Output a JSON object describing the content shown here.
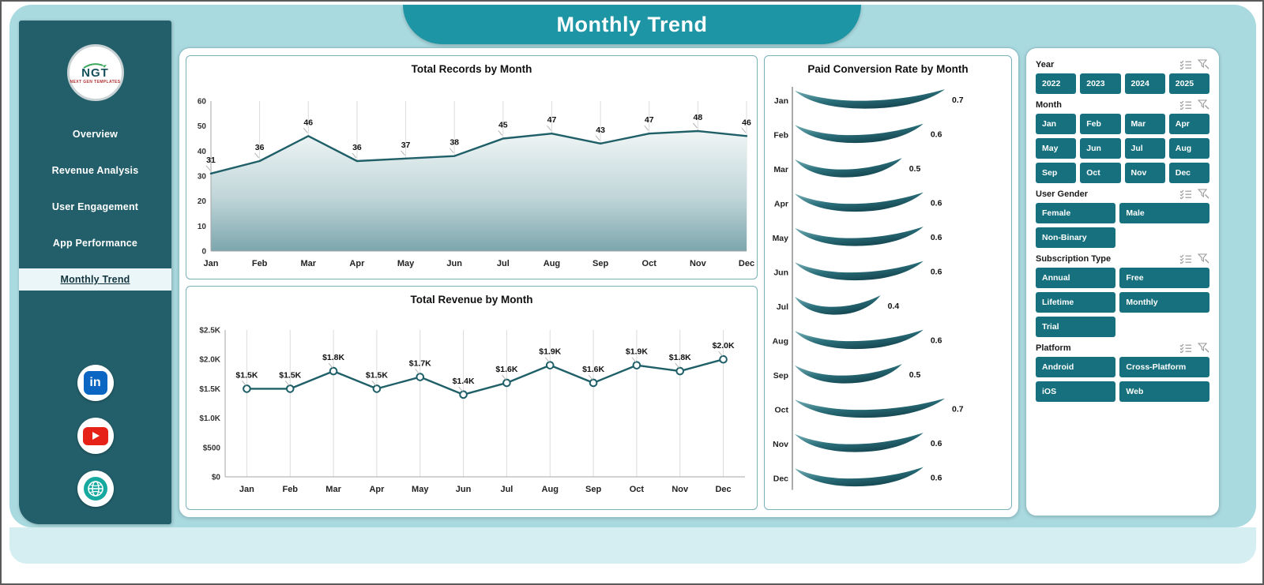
{
  "page_title": "Monthly Trend",
  "sidebar": {
    "logo": {
      "text": "NGT",
      "subtext": "NEXT GEN TEMPLATES"
    },
    "items": [
      {
        "label": "Overview",
        "active": false
      },
      {
        "label": "Revenue Analysis",
        "active": false
      },
      {
        "label": "User Engagement",
        "active": false
      },
      {
        "label": "App Performance",
        "active": false
      },
      {
        "label": "Monthly Trend",
        "active": true
      }
    ]
  },
  "social": {
    "linkedin_glyph": "in"
  },
  "chart_data": [
    {
      "type": "area",
      "title": "Total Records by Month",
      "categories": [
        "Jan",
        "Feb",
        "Mar",
        "Apr",
        "May",
        "Jun",
        "Jul",
        "Aug",
        "Sep",
        "Oct",
        "Nov",
        "Dec"
      ],
      "values": [
        31,
        36,
        46,
        36,
        37,
        38,
        45,
        47,
        43,
        47,
        48,
        46
      ],
      "point_labels": [
        "31",
        "36",
        "46",
        "36",
        "37",
        "38",
        "45",
        "47",
        "43",
        "47",
        "48",
        "46"
      ],
      "xlabel": "",
      "ylabel": "",
      "ylim": [
        0,
        60
      ],
      "yticks": [
        {
          "v": 0,
          "label": "0"
        },
        {
          "v": 10,
          "label": "10"
        },
        {
          "v": 20,
          "label": "20"
        },
        {
          "v": 30,
          "label": "30"
        },
        {
          "v": 40,
          "label": "40"
        },
        {
          "v": 50,
          "label": "50"
        },
        {
          "v": 60,
          "label": "60"
        }
      ],
      "grid": "vertical",
      "legend": false
    },
    {
      "type": "line",
      "title": "Total Revenue by Month",
      "categories": [
        "Jan",
        "Feb",
        "Mar",
        "Apr",
        "May",
        "Jun",
        "Jul",
        "Aug",
        "Sep",
        "Oct",
        "Nov",
        "Dec"
      ],
      "values": [
        1500,
        1500,
        1800,
        1500,
        1700,
        1400,
        1600,
        1900,
        1600,
        1900,
        1800,
        2000
      ],
      "point_labels": [
        "$1.5K",
        "$1.5K",
        "$1.8K",
        "$1.5K",
        "$1.7K",
        "$1.4K",
        "$1.6K",
        "$1.9K",
        "$1.6K",
        "$1.9K",
        "$1.8K",
        "$2.0K"
      ],
      "xlabel": "",
      "ylabel": "",
      "ylim": [
        0,
        2500
      ],
      "yticks": [
        {
          "v": 0,
          "label": "$0"
        },
        {
          "v": 500,
          "label": "$500"
        },
        {
          "v": 1000,
          "label": "$1.0K"
        },
        {
          "v": 1500,
          "label": "$1.5K"
        },
        {
          "v": 2000,
          "label": "$2.0K"
        },
        {
          "v": 2500,
          "label": "$2.5K"
        }
      ],
      "grid": "vertical",
      "legend": false
    },
    {
      "type": "ribbon",
      "title": "Paid Conversion Rate by Month",
      "categories": [
        "Jan",
        "Feb",
        "Mar",
        "Apr",
        "May",
        "Jun",
        "Jul",
        "Aug",
        "Sep",
        "Oct",
        "Nov",
        "Dec"
      ],
      "values": [
        0.7,
        0.6,
        0.5,
        0.6,
        0.6,
        0.6,
        0.4,
        0.6,
        0.5,
        0.7,
        0.6,
        0.6
      ],
      "value_labels": [
        "0.7",
        "0.6",
        "0.5",
        "0.6",
        "0.6",
        "0.6",
        "0.4",
        "0.6",
        "0.5",
        "0.7",
        "0.6",
        "0.6"
      ],
      "xmax": 0.7,
      "legend": false
    }
  ],
  "slicers": [
    {
      "title": "Year",
      "cols": 4,
      "options": [
        "2022",
        "2023",
        "2024",
        "2025"
      ]
    },
    {
      "title": "Month",
      "cols": 4,
      "options": [
        "Jan",
        "Feb",
        "Mar",
        "Apr",
        "May",
        "Jun",
        "Jul",
        "Aug",
        "Sep",
        "Oct",
        "Nov",
        "Dec"
      ]
    },
    {
      "title": "User Gender",
      "cols": 2,
      "options": [
        "Female",
        "Male",
        "Non-Binary"
      ]
    },
    {
      "title": "Subscription Type",
      "cols": 2,
      "options": [
        "Annual",
        "Free",
        "Lifetime",
        "Monthly",
        "Trial"
      ]
    },
    {
      "title": "Platform",
      "cols": 2,
      "options": [
        "Android",
        "Cross-Platform",
        "iOS",
        "Web"
      ]
    }
  ],
  "colors": {
    "panel_blue": "#a9dae0",
    "sidebar_teal": "#235f6a",
    "banner_teal": "#1e95a4",
    "button_teal": "#17707e",
    "chart_line": "#1f5f68"
  }
}
